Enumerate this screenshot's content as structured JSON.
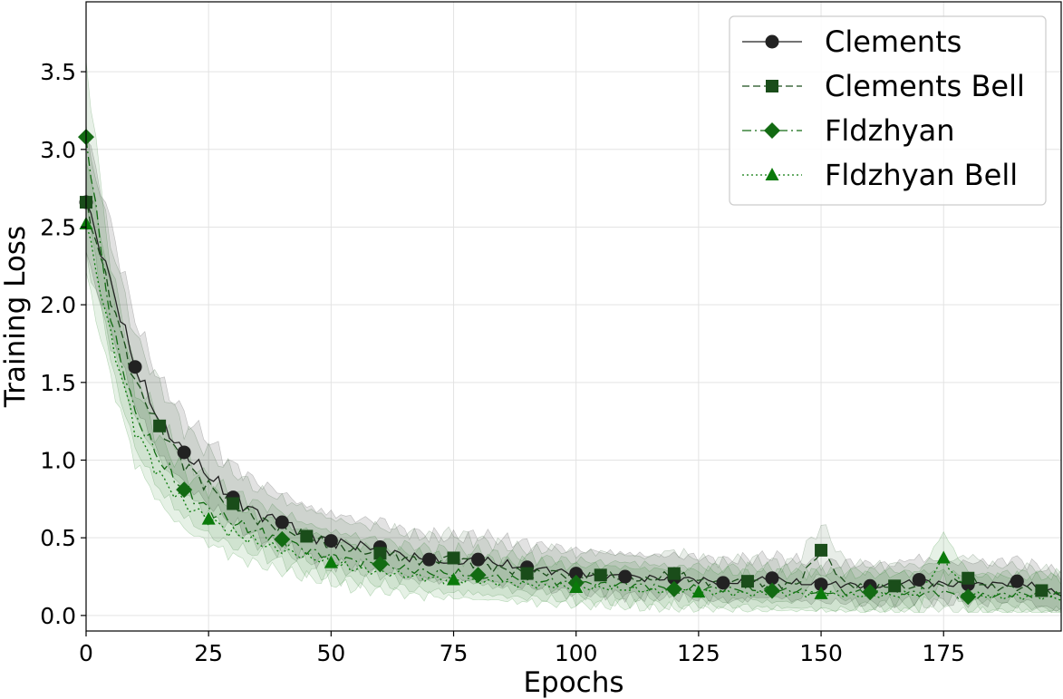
{
  "chart_data": {
    "type": "line",
    "xlabel": "Epochs",
    "ylabel": "Training Loss",
    "xlim": [
      0,
      199
    ],
    "ylim": [
      -0.1,
      3.95
    ],
    "xticks": [
      0,
      25,
      50,
      75,
      100,
      125,
      150,
      175
    ],
    "yticks": [
      0.0,
      0.5,
      1.0,
      1.5,
      2.0,
      2.5,
      3.0,
      3.5
    ],
    "grid": true,
    "legend_position": "top-right",
    "shaded_band": "variation range around each series",
    "series": [
      {
        "name": "Clements",
        "color": "#222222",
        "linestyle": "solid",
        "marker": "circle",
        "x": [
          0,
          5,
          10,
          15,
          20,
          25,
          30,
          35,
          40,
          45,
          50,
          55,
          60,
          65,
          70,
          75,
          80,
          85,
          90,
          95,
          100,
          105,
          110,
          115,
          120,
          125,
          130,
          135,
          140,
          145,
          150,
          155,
          160,
          165,
          170,
          175,
          180,
          185,
          190,
          195,
          199
        ],
        "y": [
          2.66,
          2.15,
          1.6,
          1.25,
          1.05,
          0.9,
          0.76,
          0.66,
          0.6,
          0.52,
          0.48,
          0.45,
          0.44,
          0.38,
          0.36,
          0.34,
          0.36,
          0.33,
          0.31,
          0.29,
          0.27,
          0.26,
          0.25,
          0.24,
          0.24,
          0.23,
          0.21,
          0.22,
          0.24,
          0.21,
          0.2,
          0.2,
          0.19,
          0.19,
          0.23,
          0.2,
          0.2,
          0.2,
          0.22,
          0.17,
          0.14
        ],
        "marker_x": [
          0,
          10,
          20,
          30,
          40,
          50,
          60,
          70,
          80,
          90,
          100,
          110,
          120,
          130,
          140,
          150,
          160,
          170,
          180,
          190
        ]
      },
      {
        "name": "Clements Bell",
        "color": "#1a4d1a",
        "linestyle": "dashed",
        "marker": "square",
        "x": [
          0,
          5,
          10,
          15,
          20,
          25,
          30,
          35,
          40,
          45,
          50,
          55,
          60,
          65,
          70,
          75,
          80,
          85,
          90,
          95,
          100,
          105,
          110,
          115,
          120,
          125,
          130,
          135,
          140,
          145,
          150,
          155,
          160,
          165,
          170,
          175,
          180,
          185,
          190,
          195,
          199
        ],
        "y": [
          2.66,
          2.05,
          1.5,
          1.22,
          0.98,
          0.83,
          0.72,
          0.62,
          0.56,
          0.51,
          0.45,
          0.42,
          0.4,
          0.37,
          0.35,
          0.37,
          0.33,
          0.3,
          0.27,
          0.28,
          0.25,
          0.26,
          0.24,
          0.23,
          0.27,
          0.22,
          0.21,
          0.22,
          0.2,
          0.2,
          0.42,
          0.2,
          0.18,
          0.19,
          0.18,
          0.2,
          0.24,
          0.18,
          0.18,
          0.16,
          0.14
        ],
        "marker_x": [
          0,
          15,
          30,
          45,
          60,
          75,
          90,
          105,
          120,
          135,
          150,
          165,
          180,
          195
        ]
      },
      {
        "name": "Fldzhyan",
        "color": "#136b13",
        "linestyle": "dashdot",
        "marker": "diamond",
        "x": [
          0,
          5,
          10,
          15,
          20,
          25,
          30,
          35,
          40,
          45,
          50,
          55,
          60,
          65,
          70,
          75,
          80,
          85,
          90,
          95,
          100,
          105,
          110,
          115,
          120,
          125,
          130,
          135,
          140,
          145,
          150,
          155,
          160,
          165,
          170,
          175,
          180,
          185,
          190,
          195,
          199
        ],
        "y": [
          3.08,
          1.9,
          1.3,
          1.0,
          0.81,
          0.68,
          0.6,
          0.54,
          0.49,
          0.42,
          0.38,
          0.35,
          0.33,
          0.3,
          0.28,
          0.27,
          0.26,
          0.24,
          0.23,
          0.22,
          0.21,
          0.2,
          0.2,
          0.19,
          0.17,
          0.18,
          0.17,
          0.17,
          0.16,
          0.16,
          0.15,
          0.15,
          0.15,
          0.15,
          0.14,
          0.15,
          0.12,
          0.13,
          0.14,
          0.13,
          0.13
        ],
        "marker_x": [
          0,
          20,
          40,
          60,
          80,
          100,
          120,
          140,
          160,
          180
        ]
      },
      {
        "name": "Fldzhyan Bell",
        "color": "#0a7a0a",
        "linestyle": "dotted",
        "marker": "triangle",
        "x": [
          0,
          5,
          10,
          15,
          20,
          25,
          30,
          35,
          40,
          45,
          50,
          55,
          60,
          65,
          70,
          75,
          80,
          85,
          90,
          95,
          100,
          105,
          110,
          115,
          120,
          125,
          130,
          135,
          140,
          145,
          150,
          155,
          160,
          165,
          170,
          175,
          180,
          185,
          190,
          195,
          199
        ],
        "y": [
          2.52,
          1.8,
          1.2,
          0.9,
          0.72,
          0.62,
          0.53,
          0.47,
          0.42,
          0.38,
          0.34,
          0.3,
          0.28,
          0.26,
          0.24,
          0.23,
          0.22,
          0.21,
          0.2,
          0.19,
          0.18,
          0.18,
          0.17,
          0.16,
          0.16,
          0.15,
          0.15,
          0.14,
          0.14,
          0.14,
          0.14,
          0.13,
          0.13,
          0.13,
          0.14,
          0.37,
          0.14,
          0.12,
          0.12,
          0.12,
          0.11
        ],
        "marker_x": [
          0,
          25,
          50,
          75,
          100,
          125,
          150,
          175
        ]
      }
    ]
  }
}
